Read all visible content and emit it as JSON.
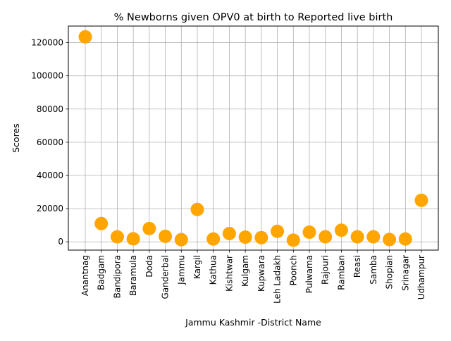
{
  "chart_data": {
    "type": "scatter",
    "title": "% Newborns given OPV0 at birth to Reported live birth",
    "xlabel": "Jammu Kashmir -District Name",
    "ylabel": "Scores",
    "ylim": [
      -5000,
      130000
    ],
    "y_ticks": [
      0,
      20000,
      40000,
      60000,
      80000,
      100000,
      120000
    ],
    "grid": true,
    "marker_color": "#ffa500",
    "categories": [
      "Anantnag",
      "Badgam",
      "Bandipora",
      "Baramula",
      "Doda",
      "Ganderbal",
      "Jammu",
      "Kargil",
      "Kathua",
      "Kishtwar",
      "Kulgam",
      "Kupwara",
      "Leh Ladakh",
      "Poonch",
      "Pulwama",
      "Rajouri",
      "Ramban",
      "Reasi",
      "Samba",
      "Shopian",
      "Srinagar",
      "Udhampur"
    ],
    "values": [
      123500,
      11000,
      3000,
      1800,
      8000,
      3300,
      1300,
      19500,
      1700,
      5000,
      2800,
      2500,
      6300,
      1000,
      5800,
      3000,
      7000,
      3000,
      3000,
      1400,
      1700,
      25000
    ]
  }
}
